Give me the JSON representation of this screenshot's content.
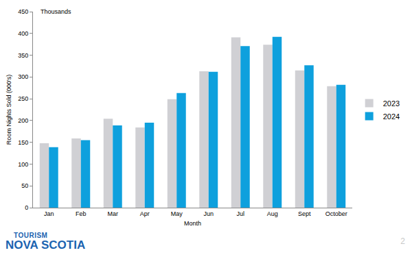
{
  "chart_data": {
    "type": "bar",
    "annotations": [
      "Thousands"
    ],
    "y_label": "Room Nights Sold (000's)",
    "x_label": "Month",
    "categories": [
      "Jan",
      "Feb",
      "Mar",
      "Apr",
      "May",
      "Jun",
      "Jul",
      "Aug",
      "Sept",
      "October"
    ],
    "series": [
      {
        "name": "2023",
        "color": "#d0d0d4",
        "values": [
          148,
          159,
          204,
          184,
          249,
          313,
          391,
          374,
          315,
          279
        ]
      },
      {
        "name": "2024",
        "color": "#0ea0dd",
        "values": [
          139,
          155,
          189,
          195,
          263,
          312,
          371,
          392,
          327,
          282
        ]
      }
    ],
    "ylim": [
      0,
      450
    ],
    "yticks": [
      0,
      50,
      100,
      150,
      200,
      250,
      300,
      350,
      400,
      450
    ],
    "grid": false,
    "legend": "right",
    "footer": {
      "logo": [
        "TOURISM",
        "NOVA SCOTIA"
      ],
      "page": "2"
    }
  }
}
